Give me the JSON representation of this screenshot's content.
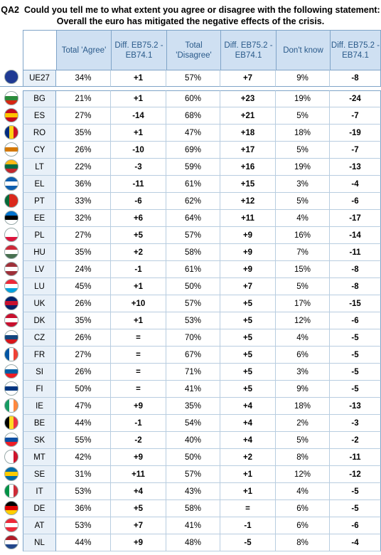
{
  "question": {
    "code": "QA2",
    "text": "Could you tell me to what extent you agree or disagree with the following statement:",
    "statement": "Overall the euro has mitigated the negative effects of the crisis."
  },
  "columns": [
    "Total 'Agree'",
    "Diff. EB75.2 - EB74.1",
    "Total 'Disagree'",
    "Diff. EB75.2 - EB74.1",
    "Don't know",
    "Diff. EB75.2 - EB74.1"
  ],
  "rows": [
    {
      "code": "UE27",
      "agree": "34%",
      "d1": "+1",
      "disagree": "57%",
      "d2": "+7",
      "dk": "9%",
      "d3": "-8",
      "flag": "eu"
    },
    {
      "code": "BG",
      "agree": "21%",
      "d1": "+1",
      "disagree": "60%",
      "d2": "+23",
      "dk": "19%",
      "d3": "-24",
      "flag": "bg"
    },
    {
      "code": "ES",
      "agree": "27%",
      "d1": "-14",
      "disagree": "68%",
      "d2": "+21",
      "dk": "5%",
      "d3": "-7",
      "flag": "es"
    },
    {
      "code": "RO",
      "agree": "35%",
      "d1": "+1",
      "disagree": "47%",
      "d2": "+18",
      "dk": "18%",
      "d3": "-19",
      "flag": "ro"
    },
    {
      "code": "CY",
      "agree": "26%",
      "d1": "-10",
      "disagree": "69%",
      "d2": "+17",
      "dk": "5%",
      "d3": "-7",
      "flag": "cy"
    },
    {
      "code": "LT",
      "agree": "22%",
      "d1": "-3",
      "disagree": "59%",
      "d2": "+16",
      "dk": "19%",
      "d3": "-13",
      "flag": "lt"
    },
    {
      "code": "EL",
      "agree": "36%",
      "d1": "-11",
      "disagree": "61%",
      "d2": "+15",
      "dk": "3%",
      "d3": "-4",
      "flag": "el"
    },
    {
      "code": "PT",
      "agree": "33%",
      "d1": "-6",
      "disagree": "62%",
      "d2": "+12",
      "dk": "5%",
      "d3": "-6",
      "flag": "pt"
    },
    {
      "code": "EE",
      "agree": "32%",
      "d1": "+6",
      "disagree": "64%",
      "d2": "+11",
      "dk": "4%",
      "d3": "-17",
      "flag": "ee"
    },
    {
      "code": "PL",
      "agree": "27%",
      "d1": "+5",
      "disagree": "57%",
      "d2": "+9",
      "dk": "16%",
      "d3": "-14",
      "flag": "pl"
    },
    {
      "code": "HU",
      "agree": "35%",
      "d1": "+2",
      "disagree": "58%",
      "d2": "+9",
      "dk": "7%",
      "d3": "-11",
      "flag": "hu"
    },
    {
      "code": "LV",
      "agree": "24%",
      "d1": "-1",
      "disagree": "61%",
      "d2": "+9",
      "dk": "15%",
      "d3": "-8",
      "flag": "lv"
    },
    {
      "code": "LU",
      "agree": "45%",
      "d1": "+1",
      "disagree": "50%",
      "d2": "+7",
      "dk": "5%",
      "d3": "-8",
      "flag": "lu"
    },
    {
      "code": "UK",
      "agree": "26%",
      "d1": "+10",
      "disagree": "57%",
      "d2": "+5",
      "dk": "17%",
      "d3": "-15",
      "flag": "uk"
    },
    {
      "code": "DK",
      "agree": "35%",
      "d1": "+1",
      "disagree": "53%",
      "d2": "+5",
      "dk": "12%",
      "d3": "-6",
      "flag": "dk"
    },
    {
      "code": "CZ",
      "agree": "26%",
      "d1": "=",
      "disagree": "70%",
      "d2": "+5",
      "dk": "4%",
      "d3": "-5",
      "flag": "cz"
    },
    {
      "code": "FR",
      "agree": "27%",
      "d1": "=",
      "disagree": "67%",
      "d2": "+5",
      "dk": "6%",
      "d3": "-5",
      "flag": "fr"
    },
    {
      "code": "SI",
      "agree": "26%",
      "d1": "=",
      "disagree": "71%",
      "d2": "+5",
      "dk": "3%",
      "d3": "-5",
      "flag": "si"
    },
    {
      "code": "FI",
      "agree": "50%",
      "d1": "=",
      "disagree": "41%",
      "d2": "+5",
      "dk": "9%",
      "d3": "-5",
      "flag": "fi"
    },
    {
      "code": "IE",
      "agree": "47%",
      "d1": "+9",
      "disagree": "35%",
      "d2": "+4",
      "dk": "18%",
      "d3": "-13",
      "flag": "ie"
    },
    {
      "code": "BE",
      "agree": "44%",
      "d1": "-1",
      "disagree": "54%",
      "d2": "+4",
      "dk": "2%",
      "d3": "-3",
      "flag": "be"
    },
    {
      "code": "SK",
      "agree": "55%",
      "d1": "-2",
      "disagree": "40%",
      "d2": "+4",
      "dk": "5%",
      "d3": "-2",
      "flag": "sk"
    },
    {
      "code": "MT",
      "agree": "42%",
      "d1": "+9",
      "disagree": "50%",
      "d2": "+2",
      "dk": "8%",
      "d3": "-11",
      "flag": "mt"
    },
    {
      "code": "SE",
      "agree": "31%",
      "d1": "+11",
      "disagree": "57%",
      "d2": "+1",
      "dk": "12%",
      "d3": "-12",
      "flag": "se"
    },
    {
      "code": "IT",
      "agree": "53%",
      "d1": "+4",
      "disagree": "43%",
      "d2": "+1",
      "dk": "4%",
      "d3": "-5",
      "flag": "it"
    },
    {
      "code": "DE",
      "agree": "36%",
      "d1": "+5",
      "disagree": "58%",
      "d2": "=",
      "dk": "6%",
      "d3": "-5",
      "flag": "de"
    },
    {
      "code": "AT",
      "agree": "53%",
      "d1": "+7",
      "disagree": "41%",
      "d2": "-1",
      "dk": "6%",
      "d3": "-6",
      "flag": "at"
    },
    {
      "code": "NL",
      "agree": "44%",
      "d1": "+9",
      "disagree": "48%",
      "d2": "-5",
      "dk": "8%",
      "d3": "-4",
      "flag": "nl"
    }
  ]
}
